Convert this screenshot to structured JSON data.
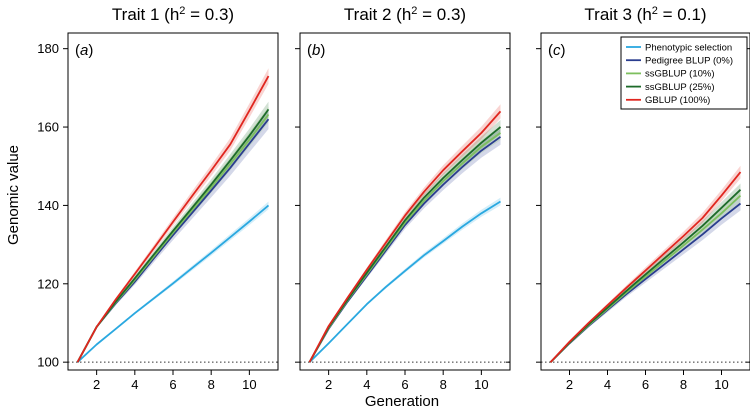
{
  "chart_data": {
    "type": "line",
    "xlabel": "Generation",
    "ylabel": "Genomic value",
    "x": [
      1,
      2,
      3,
      4,
      5,
      6,
      7,
      8,
      9,
      10,
      11
    ],
    "xticks": [
      2,
      4,
      6,
      8,
      10
    ],
    "xlim": [
      0.5,
      11.5
    ],
    "ylim": [
      98,
      184
    ],
    "reference_line": {
      "y": 100,
      "style": "dotted"
    },
    "grid": false,
    "legend": {
      "placement": "top-right",
      "panel": 3,
      "entries": [
        {
          "name": "Phenotypic selection",
          "color": "#2aa8e0"
        },
        {
          "name": "Pedigree BLUP (0%)",
          "color": "#2a3d8f"
        },
        {
          "name": "ssGBLUP (10%)",
          "color": "#7dbf5e"
        },
        {
          "name": "ssGBLUP (25%)",
          "color": "#1d6b2a"
        },
        {
          "name": "GBLUP (100%)",
          "color": "#e0261f"
        }
      ]
    },
    "panels": [
      {
        "title_main": "Trait 1 (h",
        "title_sup": "2",
        "title_end": " = 0.3)",
        "tag": "(a)",
        "yticks": [
          100,
          120,
          140,
          160,
          180
        ],
        "show_yticklabels": true,
        "series": [
          {
            "name": "Phenotypic selection",
            "color": "#2aa8e0",
            "band": 1.0,
            "values": [
              100,
              104.5,
              108.5,
              112.5,
              116.3,
              120.1,
              124.0,
              127.9,
              131.9,
              135.9,
              140.0
            ]
          },
          {
            "name": "Pedigree BLUP (0%)",
            "color": "#2a3d8f",
            "band": 2.5,
            "values": [
              100,
              109,
              115,
              120.5,
              126.5,
              132.4,
              138.1,
              143.8,
              149.6,
              155.8,
              162.0
            ]
          },
          {
            "name": "ssGBLUP (10%)",
            "color": "#7dbf5e",
            "band": 2.0,
            "values": [
              100,
              109,
              115.2,
              121.0,
              127.0,
              133.0,
              138.8,
              144.6,
              150.6,
              156.8,
              163.2
            ]
          },
          {
            "name": "ssGBLUP (25%)",
            "color": "#1d6b2a",
            "band": 2.0,
            "values": [
              100,
              109,
              115.4,
              121.4,
              127.5,
              133.5,
              139.4,
              145.3,
              151.5,
              157.8,
              164.5
            ]
          },
          {
            "name": "GBLUP (100%)",
            "color": "#e0261f",
            "band": 2.0,
            "values": [
              100,
              109,
              116,
              122.5,
              129.1,
              135.8,
              142.4,
              148.9,
              155.6,
              164.2,
              173.0
            ]
          }
        ]
      },
      {
        "title_main": "Trait 2 (h",
        "title_sup": "2",
        "title_end": " = 0.3)",
        "tag": "(b)",
        "yticks": [
          100,
          120,
          140,
          160,
          180
        ],
        "show_yticklabels": false,
        "series": [
          {
            "name": "Phenotypic selection",
            "color": "#2aa8e0",
            "band": 1.0,
            "values": [
              100,
              104.8,
              109.8,
              114.8,
              119.2,
              123.3,
              127.3,
              130.9,
              134.6,
              138.0,
              141.0
            ]
          },
          {
            "name": "Pedigree BLUP (0%)",
            "color": "#2a3d8f",
            "band": 2.0,
            "values": [
              100,
              108.5,
              115.5,
              122.0,
              128.5,
              135.0,
              140.5,
              145.3,
              149.8,
              154.0,
              157.5
            ]
          },
          {
            "name": "ssGBLUP (10%)",
            "color": "#7dbf5e",
            "band": 1.8,
            "values": [
              100,
              108.7,
              115.8,
              122.4,
              129.0,
              135.6,
              141.2,
              146.2,
              150.7,
              155.0,
              158.5
            ]
          },
          {
            "name": "ssGBLUP (25%)",
            "color": "#1d6b2a",
            "band": 1.8,
            "values": [
              100,
              108.9,
              116.0,
              122.8,
              129.5,
              136.2,
              142.0,
              147.0,
              151.6,
              156.0,
              160.0
            ]
          },
          {
            "name": "GBLUP (100%)",
            "color": "#e0261f",
            "band": 1.8,
            "values": [
              100,
              109.2,
              116.5,
              123.6,
              130.5,
              137.4,
              143.5,
              149.0,
              153.8,
              158.5,
              164.0
            ]
          }
        ]
      },
      {
        "title_main": "Trait 3 (h",
        "title_sup": "2",
        "title_end": " = 0.1)",
        "tag": "(c)",
        "yticks": [
          100,
          120,
          140,
          160,
          180
        ],
        "show_yticklabels": false,
        "series": [
          {
            "name": "Pedigree BLUP (0%)",
            "color": "#2a3d8f",
            "band": 1.8,
            "values": [
              100,
              104.8,
              109.2,
              113.3,
              117.4,
              121.2,
              125.0,
              128.8,
              132.6,
              136.7,
              140.5
            ]
          },
          {
            "name": "ssGBLUP (10%)",
            "color": "#7dbf5e",
            "band": 1.6,
            "values": [
              100,
              104.9,
              109.4,
              113.6,
              117.8,
              121.8,
              125.8,
              129.8,
              133.8,
              138.0,
              142.5
            ]
          },
          {
            "name": "ssGBLUP (25%)",
            "color": "#1d6b2a",
            "band": 1.6,
            "values": [
              100,
              105.0,
              109.6,
              113.9,
              118.2,
              122.4,
              126.5,
              130.6,
              134.8,
              139.4,
              144.0
            ]
          },
          {
            "name": "GBLUP (100%)",
            "color": "#e0261f",
            "band": 1.6,
            "values": [
              100,
              105.2,
              110.0,
              114.5,
              119.0,
              123.4,
              127.8,
              132.2,
              136.8,
              142.5,
              148.5
            ]
          }
        ]
      }
    ]
  }
}
